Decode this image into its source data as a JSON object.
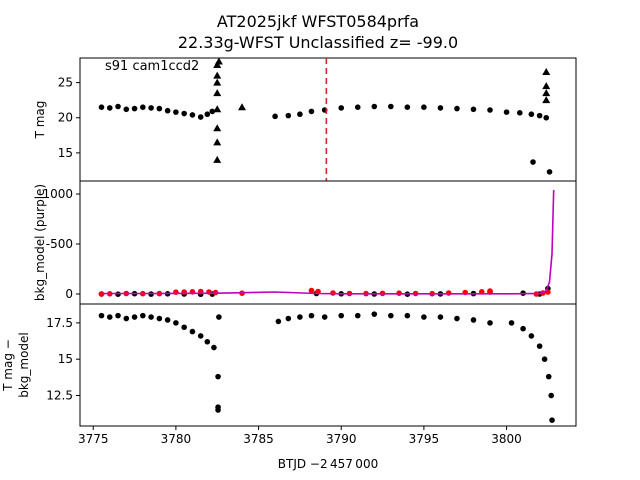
{
  "chart_data": {
    "type": "scatter",
    "title": "AT2025jkf  WFST0584prfa",
    "subtitle": "22.33g-WFST Unclassified z= -99.0",
    "annotation": "s91 cam1ccd2",
    "xlabel": "BTJD −2 457 000",
    "xlim": [
      3774.2,
      3804.2
    ],
    "xticks": [
      3775,
      3780,
      3785,
      3790,
      3795,
      3800
    ],
    "vline_x": 3789.1,
    "colors": {
      "points": "#000000",
      "fit_points": "#ff0000",
      "model_line": "#bf00bf",
      "vline": "#d62728"
    },
    "panels": [
      {
        "ylabel": "T mag",
        "ylim": [
          28.5,
          11.0
        ],
        "yticks": [
          15,
          20,
          25
        ],
        "series": [
          {
            "marker": "circle",
            "color": "#000000",
            "x": [
              3775.5,
              3776.0,
              3776.5,
              3777.0,
              3777.5,
              3778.0,
              3778.5,
              3779.0,
              3779.5,
              3780.0,
              3780.5,
              3781.0,
              3781.5,
              3781.9,
              3782.2,
              3786.0,
              3786.8,
              3787.5,
              3788.2,
              3789.0,
              3790.0,
              3791.0,
              3792.0,
              3793.0,
              3794.0,
              3795.0,
              3796.0,
              3797.0,
              3798.0,
              3799.0,
              3800.0,
              3800.8,
              3801.5,
              3802.0,
              3802.4,
              3801.6,
              3802.6
            ],
            "y": [
              21.5,
              21.4,
              21.6,
              21.2,
              21.3,
              21.5,
              21.4,
              21.3,
              21.0,
              20.8,
              20.6,
              20.4,
              20.1,
              20.5,
              20.9,
              20.2,
              20.3,
              20.5,
              20.9,
              21.1,
              21.4,
              21.5,
              21.6,
              21.6,
              21.5,
              21.5,
              21.4,
              21.3,
              21.2,
              21.1,
              20.8,
              20.7,
              20.5,
              20.3,
              20.0,
              13.7,
              12.3
            ]
          },
          {
            "marker": "triangle",
            "color": "#000000",
            "x": [
              3782.5,
              3782.5,
              3782.5,
              3782.5,
              3782.5,
              3782.5,
              3782.5,
              3782.5,
              3782.6,
              3784.0,
              3802.4,
              3802.4,
              3802.4,
              3802.4
            ],
            "y": [
              14.0,
              16.5,
              18.5,
              21.2,
              23.5,
              25.0,
              26.0,
              27.5,
              28.0,
              21.5,
              22.5,
              23.5,
              24.5,
              26.5
            ]
          }
        ]
      },
      {
        "ylabel": "bkg_model (purple)",
        "ylim": [
          -1130,
          100
        ],
        "yticks": [
          0,
          -500,
          -1000
        ],
        "series": [
          {
            "marker": "circle",
            "color": "#000000",
            "x": [
              3775.5,
              3776.5,
              3777.5,
              3778.5,
              3779.5,
              3780.5,
              3781.5,
              3782.2,
              3788.5,
              3790.0,
              3792.0,
              3794.0,
              3796.0,
              3798.0,
              3799.0,
              3801.0,
              3802.0,
              3802.5
            ],
            "y": [
              0,
              2,
              -3,
              1,
              -2,
              0,
              3,
              1,
              -5,
              -2,
              0,
              2,
              -1,
              -4,
              -20,
              -8,
              0,
              -55
            ]
          },
          {
            "marker": "circle",
            "color": "#ff0000",
            "x": [
              3775.5,
              3776.0,
              3777.0,
              3778.0,
              3779.0,
              3780.0,
              3780.5,
              3781.0,
              3781.5,
              3782.0,
              3782.4,
              3784.0,
              3788.2,
              3788.6,
              3789.5,
              3790.5,
              3791.5,
              3792.5,
              3793.5,
              3794.5,
              3795.5,
              3796.5,
              3797.5,
              3798.5,
              3799.0,
              3801.8,
              3802.2,
              3802.5
            ],
            "y": [
              0,
              -2,
              -5,
              -3,
              -4,
              -18,
              -20,
              -22,
              -25,
              -20,
              -15,
              -8,
              -35,
              -25,
              -10,
              -5,
              -4,
              -6,
              -8,
              -5,
              -3,
              -10,
              -15,
              -22,
              -30,
              0,
              -10,
              -20
            ]
          },
          {
            "marker": "line",
            "color": "#bf00bf",
            "x": [
              3775.5,
              3778.0,
              3780.0,
              3782.5,
              3786.0,
              3788.5,
              3790.0,
              3795.0,
              3799.0,
              3800.0,
              3801.0,
              3802.0,
              3802.4,
              3802.6,
              3802.75,
              3802.85
            ],
            "y": [
              -5,
              -5,
              -6,
              -8,
              -20,
              -5,
              -2,
              -2,
              -2,
              -2,
              -3,
              -6,
              -30,
              -120,
              -400,
              -1040
            ]
          }
        ]
      },
      {
        "ylabel": "T mag −\nbkg_model",
        "ylim": [
          18.8,
          10.4
        ],
        "yticks": [
          12.5,
          15.0,
          17.5
        ],
        "series": [
          {
            "marker": "circle",
            "color": "#000000",
            "x": [
              3775.5,
              3776.0,
              3776.5,
              3777.0,
              3777.5,
              3778.0,
              3778.5,
              3779.0,
              3779.5,
              3780.0,
              3780.5,
              3781.0,
              3781.5,
              3781.9,
              3782.3,
              3782.55,
              3782.55,
              3782.55,
              3782.6,
              3786.2,
              3786.8,
              3787.5,
              3788.2,
              3789.0,
              3790.0,
              3791.0,
              3792.0,
              3793.0,
              3794.0,
              3795.0,
              3796.0,
              3797.0,
              3798.0,
              3799.0,
              3800.3,
              3801.0,
              3801.5,
              3802.0,
              3802.3,
              3802.55,
              3802.7,
              3802.75
            ],
            "y": [
              18.0,
              17.9,
              18.0,
              17.8,
              17.9,
              18.0,
              17.9,
              17.8,
              17.7,
              17.5,
              17.2,
              16.9,
              16.6,
              16.2,
              15.8,
              11.5,
              11.7,
              13.8,
              17.9,
              17.6,
              17.8,
              17.9,
              18.0,
              17.9,
              18.0,
              18.0,
              18.1,
              18.0,
              18.0,
              17.9,
              17.9,
              17.8,
              17.7,
              17.5,
              17.5,
              17.1,
              16.6,
              15.9,
              15.0,
              13.8,
              12.5,
              10.8
            ]
          }
        ]
      }
    ]
  }
}
